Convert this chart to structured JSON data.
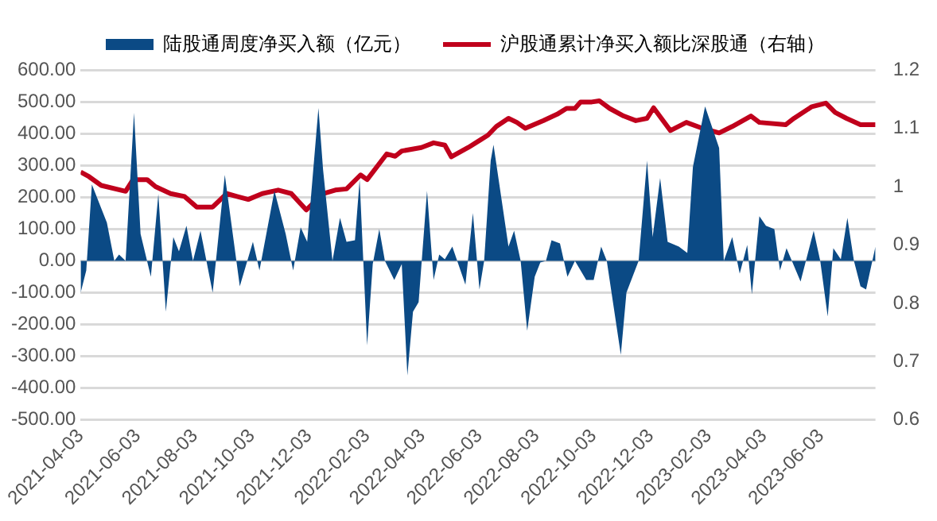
{
  "chart_data": {
    "type": "area",
    "xlim": [
      "2021-04-03",
      "2023-07-31"
    ],
    "xticks": [
      "2021-04-03",
      "2021-06-03",
      "2021-08-03",
      "2021-10-03",
      "2021-12-03",
      "2022-02-03",
      "2022-04-03",
      "2022-06-03",
      "2022-08-03",
      "2022-10-03",
      "2022-12-03",
      "2023-02-03",
      "2023-04-03",
      "2023-06-03"
    ],
    "ylim": [
      -500,
      600
    ],
    "yticks": [
      {
        "value": -500,
        "label": "-500.00"
      },
      {
        "value": -400,
        "label": "-400.00"
      },
      {
        "value": -300,
        "label": "-300.00"
      },
      {
        "value": -200,
        "label": "-200.00"
      },
      {
        "value": -100,
        "label": "-100.00"
      },
      {
        "value": 0,
        "label": "0.00"
      },
      {
        "value": 100,
        "label": "100.00"
      },
      {
        "value": 200,
        "label": "200.00"
      },
      {
        "value": 300,
        "label": "300.00"
      },
      {
        "value": 400,
        "label": "400.00"
      },
      {
        "value": 500,
        "label": "500.00"
      },
      {
        "value": 600,
        "label": "600.00"
      }
    ],
    "y2lim": [
      0.6,
      1.2
    ],
    "y2ticks": [
      0.6,
      0.7,
      0.8,
      0.9,
      1,
      1.1,
      1.2
    ],
    "grid": "y",
    "legend": "top",
    "marker": "none",
    "series": [
      {
        "name": "陆股通周度净买入额（亿元）",
        "color": "#0b4a85",
        "x": [
          "2021-04-03",
          "2021-04-09",
          "2021-04-15",
          "2021-05-01",
          "2021-05-09",
          "2021-05-14",
          "2021-05-21",
          "2021-05-30",
          "2021-06-06",
          "2021-06-17",
          "2021-06-25",
          "2021-07-03",
          "2021-07-11",
          "2021-07-17",
          "2021-07-25",
          "2021-08-01",
          "2021-08-09",
          "2021-08-22",
          "2021-09-04",
          "2021-09-20",
          "2021-10-04",
          "2021-10-11",
          "2021-10-27",
          "2021-11-08",
          "2021-11-16",
          "2021-11-24",
          "2021-12-01",
          "2021-12-13",
          "2021-12-18",
          "2021-12-28",
          "2022-01-05",
          "2022-01-12",
          "2022-01-21",
          "2022-01-26",
          "2022-02-03",
          "2022-02-09",
          "2022-02-16",
          "2022-02-22",
          "2022-03-04",
          "2022-03-12",
          "2022-03-18",
          "2022-03-24",
          "2022-03-30",
          "2022-04-08",
          "2022-04-15",
          "2022-04-21",
          "2022-04-27",
          "2022-05-05",
          "2022-05-19",
          "2022-05-27",
          "2022-06-03",
          "2022-06-08",
          "2022-06-15",
          "2022-06-18",
          "2022-07-04",
          "2022-07-10",
          "2022-07-17",
          "2022-07-24",
          "2022-08-01",
          "2022-08-07",
          "2022-08-13",
          "2022-08-19",
          "2022-08-28",
          "2022-09-05",
          "2022-09-13",
          "2022-09-25",
          "2022-10-03",
          "2022-10-11",
          "2022-10-17",
          "2022-11-01",
          "2022-11-07",
          "2022-11-20",
          "2022-11-29",
          "2022-12-05",
          "2022-12-13",
          "2022-12-21",
          "2023-01-02",
          "2023-01-11",
          "2023-01-17",
          "2023-01-30",
          "2023-02-14",
          "2023-02-19",
          "2023-02-28",
          "2023-03-08",
          "2023-03-16",
          "2023-03-21",
          "2023-03-29",
          "2023-04-05",
          "2023-04-14",
          "2023-04-20",
          "2023-04-27",
          "2023-05-12",
          "2023-05-26",
          "2023-06-02",
          "2023-06-10",
          "2023-06-16",
          "2023-06-24",
          "2023-07-01",
          "2023-07-08",
          "2023-07-15",
          "2023-07-21",
          "2023-07-31"
        ],
        "values": [
          -100,
          -30,
          240,
          120,
          0,
          20,
          0,
          465,
          85,
          -50,
          210,
          -160,
          75,
          30,
          110,
          0,
          95,
          -100,
          270,
          -80,
          60,
          -30,
          220,
          85,
          -30,
          105,
          60,
          480,
          285,
          0,
          135,
          60,
          65,
          255,
          -265,
          -10,
          100,
          0,
          -60,
          -10,
          -360,
          -160,
          -130,
          220,
          -60,
          20,
          5,
          45,
          -75,
          150,
          -90,
          0,
          315,
          365,
          45,
          95,
          0,
          -220,
          -50,
          -5,
          0,
          65,
          55,
          -50,
          0,
          -60,
          -60,
          45,
          0,
          -295,
          -100,
          0,
          315,
          75,
          260,
          60,
          45,
          25,
          295,
          485,
          355,
          0,
          75,
          -40,
          50,
          -105,
          140,
          110,
          100,
          -30,
          40,
          -65,
          95,
          0,
          -175,
          40,
          5,
          135,
          0,
          -80,
          -90,
          45
        ]
      },
      {
        "name": "沪股通累计净买入额比深股通（右轴）",
        "type": "line",
        "axis": "y2",
        "color": "#c0001c",
        "x": [
          "2021-04-03",
          "2021-04-12",
          "2021-04-25",
          "2021-05-21",
          "2021-05-29",
          "2021-06-13",
          "2021-06-22",
          "2021-07-08",
          "2021-07-23",
          "2021-08-05",
          "2021-08-22",
          "2021-09-06",
          "2021-09-17",
          "2021-09-29",
          "2021-10-14",
          "2021-10-31",
          "2021-11-14",
          "2021-11-30",
          "2021-12-18",
          "2021-12-31",
          "2022-01-12",
          "2022-01-27",
          "2022-02-03",
          "2022-02-24",
          "2022-03-05",
          "2022-03-12",
          "2022-04-02",
          "2022-04-15",
          "2022-04-27",
          "2022-05-04",
          "2022-05-22",
          "2022-06-03",
          "2022-06-12",
          "2022-06-21",
          "2022-07-04",
          "2022-07-13",
          "2022-07-22",
          "2022-08-10",
          "2022-08-25",
          "2022-09-04",
          "2022-09-13",
          "2022-09-19",
          "2022-10-01",
          "2022-10-09",
          "2022-10-20",
          "2022-11-04",
          "2022-11-17",
          "2022-11-29",
          "2022-12-06",
          "2022-12-24",
          "2023-01-10",
          "2023-01-27",
          "2023-02-14",
          "2023-02-28",
          "2023-03-20",
          "2023-03-29",
          "2023-04-26",
          "2023-05-05",
          "2023-05-24",
          "2023-06-08",
          "2023-06-18",
          "2023-06-30",
          "2023-07-15",
          "2023-07-31"
        ],
        "values": [
          1.025,
          1.017,
          1.002,
          0.992,
          1.012,
          1.012,
          1.0,
          0.988,
          0.983,
          0.965,
          0.965,
          0.988,
          0.983,
          0.978,
          0.988,
          0.994,
          0.988,
          0.96,
          0.988,
          0.994,
          0.996,
          1.02,
          1.012,
          1.056,
          1.052,
          1.061,
          1.067,
          1.075,
          1.071,
          1.051,
          1.067,
          1.079,
          1.088,
          1.103,
          1.117,
          1.11,
          1.1,
          1.113,
          1.124,
          1.134,
          1.134,
          1.145,
          1.145,
          1.147,
          1.134,
          1.121,
          1.113,
          1.117,
          1.135,
          1.096,
          1.11,
          1.1,
          1.092,
          1.103,
          1.121,
          1.11,
          1.106,
          1.117,
          1.137,
          1.143,
          1.127,
          1.117,
          1.106,
          1.106
        ]
      }
    ]
  }
}
